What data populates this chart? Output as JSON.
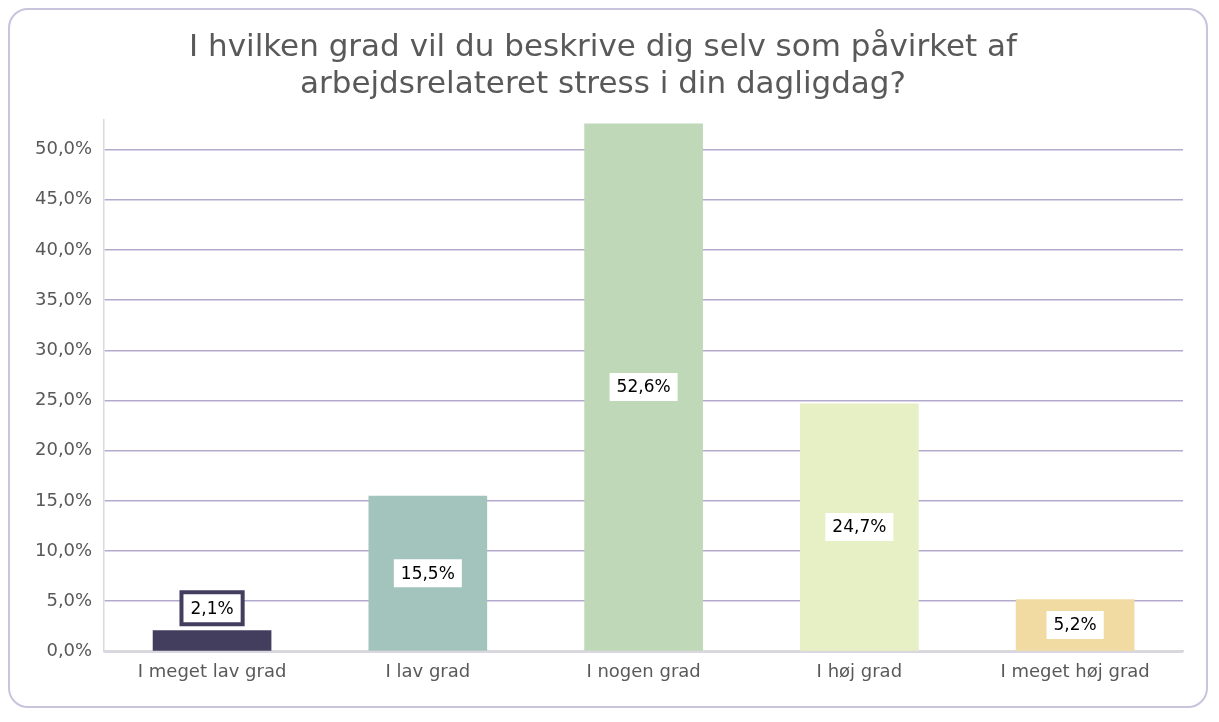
{
  "chart_data": {
    "type": "bar",
    "title": "I hvilken grad vil du beskrive dig selv som påvirket af arbejdsrelateret stress i din dagligdag?",
    "categories": [
      "I meget lav grad",
      "I lav grad",
      "I nogen grad",
      "I høj grad",
      "I meget høj grad"
    ],
    "values": [
      2.1,
      15.5,
      52.6,
      24.7,
      5.2
    ],
    "colors": [
      "#433d5e",
      "#a3c4bc",
      "#bfd8b8",
      "#e7efc5",
      "#f2dba2"
    ],
    "value_labels": [
      "2,1%",
      "15,5%",
      "52,6%",
      "24,7%",
      "5,2%"
    ],
    "ylim": [
      0,
      53
    ],
    "yticks": [
      {
        "value": 0,
        "label": "0,0%"
      },
      {
        "value": 5,
        "label": "5,0%"
      },
      {
        "value": 10,
        "label": "10,0%"
      },
      {
        "value": 15,
        "label": "15,0%"
      },
      {
        "value": 20,
        "label": "20,0%"
      },
      {
        "value": 25,
        "label": "25,0%"
      },
      {
        "value": 30,
        "label": "30,0%"
      },
      {
        "value": 35,
        "label": "35,0%"
      },
      {
        "value": 40,
        "label": "40,0%"
      },
      {
        "value": 45,
        "label": "45,0%"
      },
      {
        "value": 50,
        "label": "50,0%"
      }
    ],
    "grid": "y"
  }
}
